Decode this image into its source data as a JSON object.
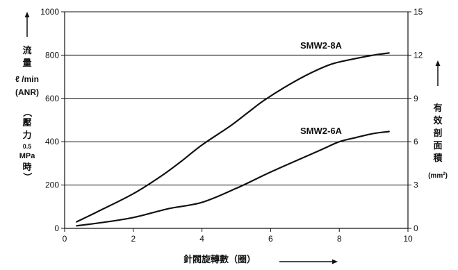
{
  "chart_data": {
    "type": "line",
    "xlabel": "針閥旋轉數（圈）",
    "y_left_label": {
      "title_lines": [
        "流",
        "量"
      ],
      "unit": "ℓ /min",
      "anr": "(ANR)",
      "cond_open": "（",
      "cond_lines": [
        "壓",
        "力"
      ],
      "cond_value": "0.5",
      "cond_unit": "MPa",
      "cond_time": "時",
      "cond_close": "）"
    },
    "y_right_label": {
      "lines": [
        "有",
        "效",
        "剖",
        "面",
        "積"
      ],
      "unit_base": "(mm",
      "unit_sup": "2",
      "unit_close": ")"
    },
    "xlim": [
      0,
      10
    ],
    "ylim": [
      0,
      1000
    ],
    "y_right_lim": [
      0,
      15
    ],
    "x_ticks": [
      "0",
      "2",
      "4",
      "6",
      "8",
      "10"
    ],
    "y_ticks": [
      "0",
      "200",
      "400",
      "600",
      "800",
      "1000"
    ],
    "y_right_ticks": [
      "0",
      "3",
      "6",
      "9",
      "12",
      "15"
    ],
    "grid": "horizontal",
    "series": [
      {
        "name": "SMW2-8A",
        "x": [
          0.35,
          1.0,
          2.0,
          2.8,
          3.4,
          4.0,
          4.8,
          5.3,
          5.8,
          6.5,
          7.2,
          7.8,
          8.5,
          9.0,
          9.45
        ],
        "y": [
          30,
          80,
          160,
          240,
          310,
          385,
          470,
          530,
          590,
          660,
          720,
          760,
          785,
          800,
          810
        ]
      },
      {
        "name": "SMW2-6A",
        "x": [
          0.35,
          1.0,
          2.0,
          3.0,
          4.0,
          5.0,
          6.0,
          7.0,
          7.5,
          8.0,
          8.5,
          9.0,
          9.45
        ],
        "y": [
          12,
          25,
          50,
          90,
          120,
          185,
          260,
          330,
          365,
          400,
          420,
          438,
          447
        ]
      }
    ]
  }
}
